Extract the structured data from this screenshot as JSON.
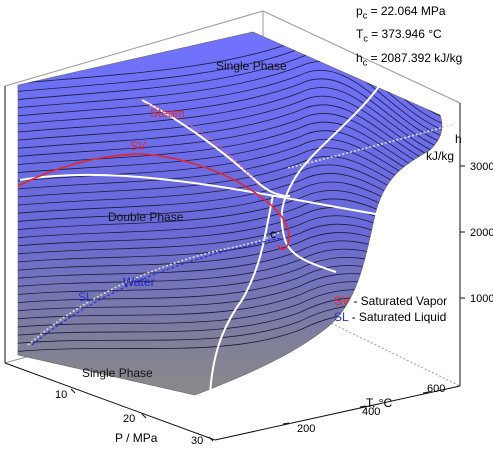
{
  "chart_data": {
    "type": "surface",
    "title": "",
    "critical_point": {
      "pc": {
        "sym": "p",
        "sub": "c",
        "text": " = 22.064 MPa"
      },
      "tc": {
        "sym": "T",
        "sub": "c",
        "text": " = 373.946 °C"
      },
      "hc": {
        "sym": "h",
        "sub": "c",
        "text": " = 2087.392 kJ/kg"
      }
    },
    "axes": {
      "p": {
        "label": "P / MPa",
        "ticks": [
          "10",
          "20",
          "30"
        ],
        "range": [
          0,
          30
        ]
      },
      "t": {
        "label": "T, °C",
        "ticks": [
          "200",
          "400",
          "600"
        ],
        "range": [
          0,
          700
        ]
      },
      "h": {
        "label_line1": "h",
        "label_line2": "kJ/kg",
        "ticks": [
          "1000",
          "2000",
          "3000"
        ],
        "range": [
          0,
          3800
        ]
      }
    },
    "regions": {
      "single_top": "Single Phase",
      "double": "Double Phase",
      "single_bottom": "Single Phase",
      "steam": "Steam",
      "water": "Water",
      "sv": "SV",
      "sl": "SL",
      "c": "c"
    },
    "legend": [
      {
        "abbr": "SV",
        "text": " - Saturated Vapor",
        "color": "#e8242b"
      },
      {
        "abbr": "SL",
        "text": " - Saturated Liquid",
        "color": "#2b2fd0"
      }
    ],
    "colors": {
      "surface_top": "#6b6dff",
      "surface_bottom": "#7c7c7c",
      "sv": "#e8242b",
      "sl": "#2b2fd0",
      "isoline": "#000000",
      "highlight": "#ffffff"
    }
  }
}
